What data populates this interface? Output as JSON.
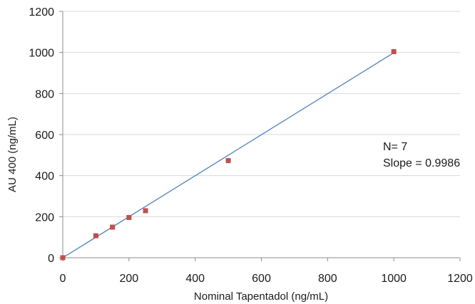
{
  "chart_data": {
    "type": "scatter",
    "xlabel": "Nominal Tapentadol (ng/mL)",
    "ylabel": "AU 400 (ng/mL)",
    "xlim": [
      0,
      1200
    ],
    "ylim": [
      0,
      1200
    ],
    "xticks": [
      0,
      200,
      400,
      600,
      800,
      1000,
      1200
    ],
    "yticks": [
      0,
      200,
      400,
      600,
      800,
      1000,
      1200
    ],
    "grid": "horizontal",
    "series": [
      {
        "x": [
          0,
          100,
          150,
          200,
          250,
          500,
          1000
        ],
        "y": [
          0,
          107,
          149,
          196,
          229,
          473,
          1004
        ],
        "color": "#c0504d",
        "marker": "square"
      }
    ],
    "trendline": {
      "type": "linear",
      "x": [
        0,
        1000
      ],
      "y": [
        0,
        998.6
      ],
      "color": "#4f81bd"
    },
    "annotations": [
      "N= 7",
      "Slope = 0.9986"
    ]
  }
}
